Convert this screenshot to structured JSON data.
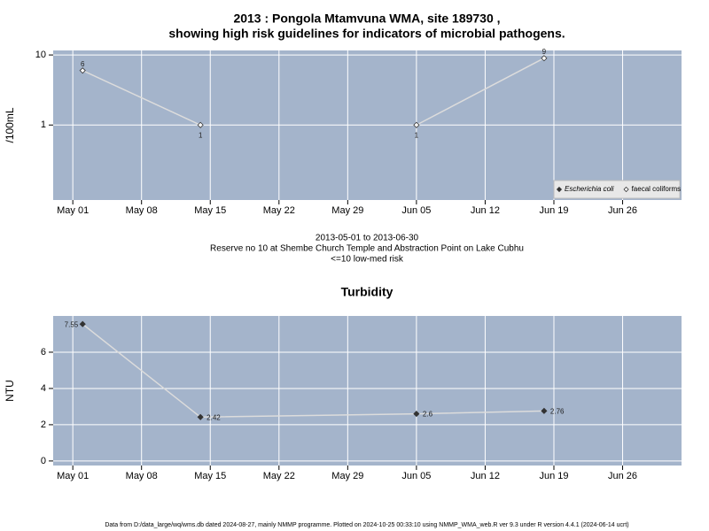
{
  "chart_data": [
    {
      "type": "line",
      "title": [
        "2013 : Pongola Mtamvuna WMA, site 189730 ,",
        "showing high risk guidelines for indicators of microbial pathogens."
      ],
      "ylabel": "/100mL",
      "log_y": true,
      "ylim": [
        0.085,
        11.6
      ],
      "yticks": [
        1,
        10
      ],
      "xlim": [
        "04-29",
        "07-02"
      ],
      "xticks": [
        {
          "value": "05-01",
          "label": "May 01"
        },
        {
          "value": "05-08",
          "label": "May 08"
        },
        {
          "value": "05-15",
          "label": "May 15"
        },
        {
          "value": "05-22",
          "label": "May 22"
        },
        {
          "value": "05-29",
          "label": "May 29"
        },
        {
          "value": "06-05",
          "label": "Jun 05"
        },
        {
          "value": "06-12",
          "label": "Jun 12"
        },
        {
          "value": "06-19",
          "label": "Jun 19"
        },
        {
          "value": "06-26",
          "label": "Jun 26"
        }
      ],
      "grid": true,
      "background": "#a4b4cb",
      "line_color": "#dcdcdc",
      "legend": "bottom-right",
      "x": [
        "05-02",
        "05-14",
        "05-28",
        "06-05",
        "06-18"
      ],
      "series": [
        {
          "name": "Escherichia coli",
          "color": "#333333",
          "fill": "#333333",
          "values": [
            null,
            null,
            null,
            null,
            null
          ]
        },
        {
          "name": "faecal coliforms",
          "color": "#333333",
          "fill": "#ffffff",
          "values": [
            6,
            1,
            null,
            1,
            9
          ]
        }
      ],
      "annotations": [
        "2013-05-01 to 2013-06-30",
        "Reserve no 10 at Shembe Church Temple and Abstraction Point on Lake Cubhu",
        "<=10 low-med risk"
      ]
    },
    {
      "type": "line",
      "title": [
        "Turbidity"
      ],
      "ylabel": "NTU",
      "log_y": false,
      "ylim": [
        -0.25,
        8.0
      ],
      "yticks": [
        0,
        2,
        4,
        6
      ],
      "xlim": [
        "04-29",
        "07-02"
      ],
      "xticks": [
        {
          "value": "05-01",
          "label": "May 01"
        },
        {
          "value": "05-08",
          "label": "May 08"
        },
        {
          "value": "05-15",
          "label": "May 15"
        },
        {
          "value": "05-22",
          "label": "May 22"
        },
        {
          "value": "05-29",
          "label": "May 29"
        },
        {
          "value": "06-05",
          "label": "Jun 05"
        },
        {
          "value": "06-12",
          "label": "Jun 12"
        },
        {
          "value": "06-19",
          "label": "Jun 19"
        },
        {
          "value": "06-26",
          "label": "Jun 26"
        }
      ],
      "grid": true,
      "background": "#a4b4cb",
      "line_color": "#dcdcdc",
      "x": [
        "05-02",
        "05-14",
        "06-05",
        "06-18"
      ],
      "series": [
        {
          "color": "#333333",
          "fill": "#333333",
          "values": [
            7.55,
            2.42,
            2.6,
            2.76
          ]
        }
      ]
    }
  ],
  "footer": "Data from D:/data_large/wq/wms.db dated 2024-08-27, mainly NMMP programme. Plotted on 2024-10-25 00:33:10 using NMMP_WMA_web.R ver 9.3 under R version 4.4.1 (2024-06-14 ucrt)"
}
